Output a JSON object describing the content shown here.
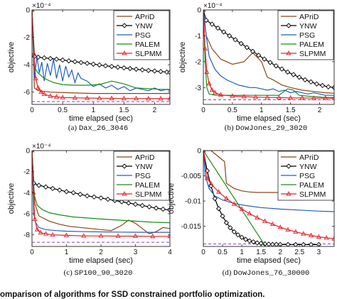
{
  "figure_caption": "omparison of algorithms for SSD constrained portfolio optimization.",
  "chart_data": [
    {
      "type": "line",
      "caption_prefix": "(a)",
      "caption_name": "Dax_26_3046",
      "xlabel": "time elapsed (sec)",
      "ylabel": "objective",
      "exponent": "×10⁻⁴",
      "xlim": [
        0,
        2.25
      ],
      "ylim": [
        -6.9,
        0
      ],
      "xticks": [
        0,
        0.5,
        1,
        1.5,
        2
      ],
      "xticklabels": [
        "0",
        "0.5",
        "1",
        "1.5",
        "2"
      ],
      "yticks": [
        0,
        -2,
        -4,
        -6
      ],
      "yticklabels": [
        "0",
        "-2",
        "-4",
        "-6"
      ],
      "optimum": -6.7,
      "legend_position": "top-right",
      "series": [
        {
          "name": "APriD",
          "color": "#8B4513",
          "marker": "none",
          "x": [
            0,
            0.04,
            0.1,
            0.3,
            0.6,
            1.0,
            1.5,
            2.0,
            2.25
          ],
          "y": [
            0,
            -5.7,
            -5.9,
            -6.0,
            -6.05,
            -6.1,
            -6.1,
            -6.1,
            -6.1
          ]
        },
        {
          "name": "YNW",
          "color": "#000000",
          "marker": "diamond",
          "x": [
            0,
            0.04,
            0.1,
            0.2,
            0.3,
            0.4,
            0.5,
            0.6,
            0.7,
            0.8,
            0.9,
            1.0,
            1.1,
            1.2,
            1.3,
            1.4,
            1.5,
            1.6,
            1.7,
            1.8,
            1.9,
            2.0,
            2.1,
            2.2,
            2.25
          ],
          "y": [
            0,
            -3.4,
            -3.45,
            -3.5,
            -3.55,
            -3.6,
            -3.66,
            -3.72,
            -3.78,
            -3.84,
            -3.9,
            -3.96,
            -4.02,
            -4.08,
            -4.13,
            -4.18,
            -4.23,
            -4.28,
            -4.33,
            -4.38,
            -4.42,
            -4.46,
            -4.5,
            -4.54,
            -4.56
          ]
        },
        {
          "name": "PSG",
          "color": "#1f5fbf",
          "marker": "none",
          "x": [
            0,
            0.04,
            0.08,
            0.12,
            0.16,
            0.2,
            0.25,
            0.3,
            0.35,
            0.4,
            0.45,
            0.5,
            0.55,
            0.6,
            0.65,
            0.7,
            0.75,
            0.8,
            0.9,
            1.0,
            1.1,
            1.2,
            1.3,
            1.4,
            1.5,
            1.6,
            1.7,
            1.8,
            1.9,
            2.0,
            2.1,
            2.2,
            2.25
          ],
          "y": [
            0,
            -5.0,
            -3.4,
            -4.6,
            -3.8,
            -5.2,
            -3.9,
            -4.8,
            -3.6,
            -5.0,
            -4.0,
            -5.2,
            -4.1,
            -4.9,
            -4.4,
            -5.3,
            -4.6,
            -5.0,
            -5.2,
            -5.6,
            -5.4,
            -5.7,
            -5.5,
            -5.8,
            -5.6,
            -5.9,
            -5.7,
            -5.8,
            -5.9,
            -5.7,
            -5.9,
            -5.8,
            -5.9
          ]
        },
        {
          "name": "PALEM",
          "color": "#1a8a1a",
          "marker": "none",
          "x": [
            0,
            0.04,
            0.1,
            0.2,
            0.35,
            0.5,
            0.7,
            0.9,
            1.1,
            1.3,
            1.5,
            1.7,
            1.9,
            2.1,
            2.25
          ],
          "y": [
            0,
            -4.2,
            -4.6,
            -5.0,
            -5.3,
            -5.45,
            -5.5,
            -5.5,
            -5.45,
            -5.2,
            -5.4,
            -5.7,
            -5.75,
            -5.8,
            -5.8
          ]
        },
        {
          "name": "SLPMM",
          "color": "#e8202a",
          "marker": "triangle",
          "x": [
            0,
            0.03,
            0.06,
            0.1,
            0.15,
            0.2,
            0.3,
            0.4,
            0.5,
            0.7,
            0.9,
            1.1,
            1.3,
            1.5,
            1.7,
            1.9,
            2.1,
            2.25
          ],
          "y": [
            0,
            -3.2,
            -5.0,
            -5.7,
            -6.0,
            -6.15,
            -6.3,
            -6.35,
            -6.4,
            -6.42,
            -6.44,
            -6.45,
            -6.46,
            -6.47,
            -6.47,
            -6.48,
            -6.48,
            -6.48
          ]
        }
      ]
    },
    {
      "type": "line",
      "caption_prefix": "(b)",
      "caption_name": "DowJones_29_3020",
      "xlabel": "time elapsed (sec)",
      "ylabel": "objective",
      "exponent": "×10⁻⁴",
      "xlim": [
        0,
        2.25
      ],
      "ylim": [
        -3.65,
        0
      ],
      "xticks": [
        0,
        0.5,
        1,
        1.5,
        2
      ],
      "xticklabels": [
        "0",
        "0.5",
        "1",
        "1.5",
        "2"
      ],
      "yticks": [
        0,
        -1,
        -2,
        -3
      ],
      "yticklabels": [
        "0",
        "-1",
        "-2",
        "-3"
      ],
      "optimum": -3.47,
      "legend_position": "top-right",
      "series": [
        {
          "name": "APriD",
          "color": "#8B4513",
          "marker": "none",
          "x": [
            0,
            0.05,
            0.15,
            0.3,
            0.5,
            0.7,
            0.85,
            1.0,
            1.1,
            1.2,
            1.35,
            1.5,
            1.7,
            1.9,
            2.1,
            2.25
          ],
          "y": [
            0,
            -1.0,
            -1.5,
            -1.9,
            -2.1,
            -2.0,
            -1.65,
            -2.0,
            -2.6,
            -2.7,
            -2.9,
            -3.0,
            -3.1,
            -3.15,
            -3.2,
            -3.22
          ]
        },
        {
          "name": "YNW",
          "color": "#000000",
          "marker": "diamond",
          "x": [
            0,
            0.05,
            0.15,
            0.25,
            0.35,
            0.45,
            0.55,
            0.65,
            0.75,
            0.85,
            0.95,
            1.05,
            1.15,
            1.25,
            1.35,
            1.45,
            1.55,
            1.65,
            1.75,
            1.85,
            1.95,
            2.05,
            2.15,
            2.25
          ],
          "y": [
            0,
            -0.4,
            -0.55,
            -0.7,
            -0.85,
            -1.0,
            -1.15,
            -1.3,
            -1.45,
            -1.6,
            -1.75,
            -1.9,
            -2.03,
            -2.16,
            -2.28,
            -2.4,
            -2.5,
            -2.6,
            -2.7,
            -2.78,
            -2.86,
            -2.92,
            -2.97,
            -3.0
          ]
        },
        {
          "name": "PSG",
          "color": "#1f5fbf",
          "marker": "none",
          "x": [
            0,
            0.05,
            0.1,
            0.2,
            0.3,
            0.4,
            0.5,
            0.6,
            0.7,
            0.8,
            0.9,
            1.0,
            1.1,
            1.2,
            1.3,
            1.4,
            1.5,
            1.6,
            1.7,
            1.8,
            1.9,
            2.0,
            2.1,
            2.25
          ],
          "y": [
            0,
            -1.0,
            -1.8,
            -2.3,
            -2.55,
            -2.7,
            -2.8,
            -2.9,
            -2.95,
            -3.0,
            -3.0,
            -3.05,
            -3.1,
            -3.05,
            -3.15,
            -3.1,
            -3.2,
            -3.15,
            -3.2,
            -3.25,
            -3.2,
            -3.25,
            -3.3,
            -3.3
          ]
        },
        {
          "name": "PALEM",
          "color": "#1a8a1a",
          "marker": "none",
          "x": [
            0,
            0.03,
            0.06,
            0.1,
            0.2,
            0.4,
            0.7,
            1.0,
            1.3,
            1.45,
            1.55,
            1.65,
            1.9,
            2.1,
            2.25
          ],
          "y": [
            0,
            -2.0,
            -3.0,
            -3.25,
            -3.3,
            -3.3,
            -3.3,
            -3.3,
            -3.3,
            -3.05,
            -3.1,
            -3.3,
            -3.35,
            -3.38,
            -3.38
          ]
        },
        {
          "name": "SLPMM",
          "color": "#e8202a",
          "marker": "triangle",
          "x": [
            0,
            0.03,
            0.06,
            0.1,
            0.15,
            0.2,
            0.3,
            0.5,
            0.7,
            0.9,
            1.1,
            1.3,
            1.5,
            1.7,
            1.9,
            2.1,
            2.25
          ],
          "y": [
            0,
            -1.5,
            -2.4,
            -2.85,
            -3.1,
            -3.2,
            -3.28,
            -3.33,
            -3.35,
            -3.37,
            -3.38,
            -3.39,
            -3.4,
            -3.4,
            -3.41,
            -3.41,
            -3.41
          ]
        }
      ]
    },
    {
      "type": "line",
      "caption_prefix": "(c)",
      "caption_name": "SP100_90_3020",
      "xlabel": "time elapsed (sec)",
      "ylabel": "objective",
      "exponent": "×10⁻⁴",
      "xlim": [
        0,
        4
      ],
      "ylim": [
        -9.1,
        0
      ],
      "xticks": [
        0,
        1,
        2,
        3,
        4
      ],
      "xticklabels": [
        "0",
        "1",
        "2",
        "3",
        "4"
      ],
      "yticks": [
        0,
        -2,
        -4,
        -6,
        -8
      ],
      "yticklabels": [
        "0",
        "-2",
        "-4",
        "-6",
        "-8"
      ],
      "optimum": -8.7,
      "legend_position": "top-right",
      "series": [
        {
          "name": "APriD",
          "color": "#8B4513",
          "marker": "none",
          "x": [
            0,
            0.08,
            0.2,
            0.5,
            0.8,
            1.1,
            1.4,
            1.7,
            2.0,
            2.3,
            2.6,
            2.8,
            3.0,
            3.2,
            3.4,
            3.6,
            3.8,
            4.0
          ],
          "y": [
            0,
            -5.0,
            -6.2,
            -6.7,
            -7.0,
            -7.2,
            -7.3,
            -7.4,
            -7.5,
            -7.6,
            -7.1,
            -6.6,
            -6.9,
            -7.4,
            -7.9,
            -7.7,
            -7.3,
            -7.4
          ]
        },
        {
          "name": "YNW",
          "color": "#000000",
          "marker": "diamond",
          "x": [
            0,
            0.05,
            0.2,
            0.4,
            0.6,
            0.8,
            1.0,
            1.2,
            1.4,
            1.6,
            1.8,
            2.0,
            2.2,
            2.4,
            2.6,
            2.8,
            3.0,
            3.2,
            3.4,
            3.6,
            3.8,
            4.0
          ],
          "y": [
            0,
            -3.1,
            -3.3,
            -3.45,
            -3.6,
            -3.75,
            -3.9,
            -4.0,
            -4.15,
            -4.3,
            -4.4,
            -4.5,
            -4.62,
            -4.74,
            -4.86,
            -4.98,
            -5.1,
            -5.22,
            -5.34,
            -5.46,
            -5.56,
            -5.65
          ]
        },
        {
          "name": "PSG",
          "color": "#1f5fbf",
          "marker": "none",
          "x": [
            0,
            0.05,
            0.1,
            0.2,
            0.4,
            0.7,
            1.0,
            1.5,
            2.0,
            2.5,
            3.0,
            3.5,
            4.0
          ],
          "y": [
            0,
            -6.0,
            -6.8,
            -7.3,
            -7.5,
            -7.6,
            -7.65,
            -7.7,
            -7.72,
            -7.74,
            -7.75,
            -7.76,
            -7.76
          ]
        },
        {
          "name": "PALEM",
          "color": "#1a8a1a",
          "marker": "none",
          "x": [
            0,
            0.05,
            0.15,
            0.3,
            0.5,
            0.8,
            1.2,
            1.6,
            2.0,
            2.5,
            3.0,
            3.5,
            4.0
          ],
          "y": [
            0,
            -4.0,
            -5.2,
            -5.6,
            -5.9,
            -6.1,
            -6.3,
            -6.4,
            -6.5,
            -6.6,
            -6.7,
            -6.8,
            -6.85
          ]
        },
        {
          "name": "SLPMM",
          "color": "#e8202a",
          "marker": "triangle",
          "x": [
            0,
            0.04,
            0.08,
            0.15,
            0.25,
            0.4,
            0.6,
            1.0,
            1.5,
            2.0,
            2.5,
            3.0,
            3.5,
            4.0
          ],
          "y": [
            0,
            -4.0,
            -6.5,
            -7.5,
            -7.8,
            -7.9,
            -8.0,
            -8.05,
            -8.1,
            -8.1,
            -8.12,
            -8.12,
            -8.14,
            -8.14
          ]
        }
      ]
    },
    {
      "type": "line",
      "caption_prefix": "(d)",
      "caption_name": "DowJones_76_30000",
      "xlabel": "time elapsed (sec)",
      "ylabel": "objective",
      "exponent": "",
      "xlim": [
        0,
        3.4
      ],
      "ylim": [
        -0.019,
        0
      ],
      "xticks": [
        0,
        0.5,
        1,
        1.5,
        2,
        2.5,
        3
      ],
      "xticklabels": [
        "0",
        "0.5",
        "1",
        "1.5",
        "2",
        "2.5",
        "3"
      ],
      "yticks": [
        0,
        -0.005,
        -0.01,
        -0.015
      ],
      "yticklabels": [
        "0",
        "-0.005",
        "-0.01",
        "-0.015"
      ],
      "optimum": -0.0185,
      "legend_position": "top-right",
      "series": [
        {
          "name": "APriD",
          "color": "#8B4513",
          "marker": "none",
          "x": [
            0,
            0.2,
            0.55,
            0.6,
            0.8,
            1.0,
            1.2,
            1.4,
            1.6,
            1.8,
            2.0,
            2.2,
            2.4,
            2.6,
            2.8,
            3.0,
            3.2,
            3.4
          ],
          "y": [
            0,
            0,
            -0.0022,
            -0.0065,
            -0.0075,
            -0.008,
            -0.0082,
            -0.0083,
            -0.0083,
            -0.0083,
            -0.0083,
            -0.0083,
            -0.0082,
            -0.0081,
            -0.0081,
            -0.0081,
            -0.0081,
            -0.0081
          ]
        },
        {
          "name": "YNW",
          "color": "#000000",
          "marker": "diamond",
          "x": [
            0,
            0.1,
            0.2,
            0.3,
            0.4,
            0.5,
            0.6,
            0.7,
            0.8,
            0.9,
            1.0,
            1.1,
            1.2,
            1.3,
            1.4,
            1.5,
            1.6,
            1.7,
            1.8,
            1.9,
            2.0,
            2.2,
            2.4,
            2.6,
            2.8,
            3.0
          ],
          "y": [
            0,
            -0.004,
            -0.007,
            -0.0095,
            -0.0115,
            -0.013,
            -0.0143,
            -0.0153,
            -0.0161,
            -0.0167,
            -0.0172,
            -0.0176,
            -0.0179,
            -0.0181,
            -0.0183,
            -0.0184,
            -0.0185,
            -0.01855,
            -0.0186,
            -0.0186,
            -0.01862,
            -0.01862,
            -0.01863,
            -0.01863,
            -0.01863,
            -0.01863
          ]
        },
        {
          "name": "PSG",
          "color": "#1f5fbf",
          "marker": "none",
          "x": [
            0,
            0.05,
            0.15,
            0.3,
            0.5,
            0.8,
            1.1,
            1.5,
            2.0,
            2.5,
            3.0,
            3.4
          ],
          "y": [
            0,
            -0.005,
            -0.0075,
            -0.009,
            -0.0098,
            -0.0105,
            -0.0109,
            -0.0113,
            -0.0116,
            -0.0118,
            -0.012,
            -0.0121
          ]
        },
        {
          "name": "PALEM",
          "color": "#1a8a1a",
          "marker": "none",
          "x": [
            0,
            1.6
          ],
          "y": [
            0,
            -0.0188
          ]
        },
        {
          "name": "SLPMM",
          "color": "#e8202a",
          "marker": "triangle",
          "x": [
            0,
            0.1,
            0.2,
            0.4,
            0.6,
            0.8,
            1.0,
            1.2,
            1.4,
            1.6,
            1.8,
            2.0,
            2.2,
            2.4,
            2.6,
            2.8,
            3.0,
            3.2,
            3.4
          ],
          "y": [
            0,
            -0.0055,
            -0.0066,
            -0.0082,
            -0.0095,
            -0.0106,
            -0.0116,
            -0.0125,
            -0.0133,
            -0.014,
            -0.0146,
            -0.0152,
            -0.0157,
            -0.0161,
            -0.0165,
            -0.0168,
            -0.0171,
            -0.0173,
            -0.0175
          ]
        }
      ]
    }
  ]
}
